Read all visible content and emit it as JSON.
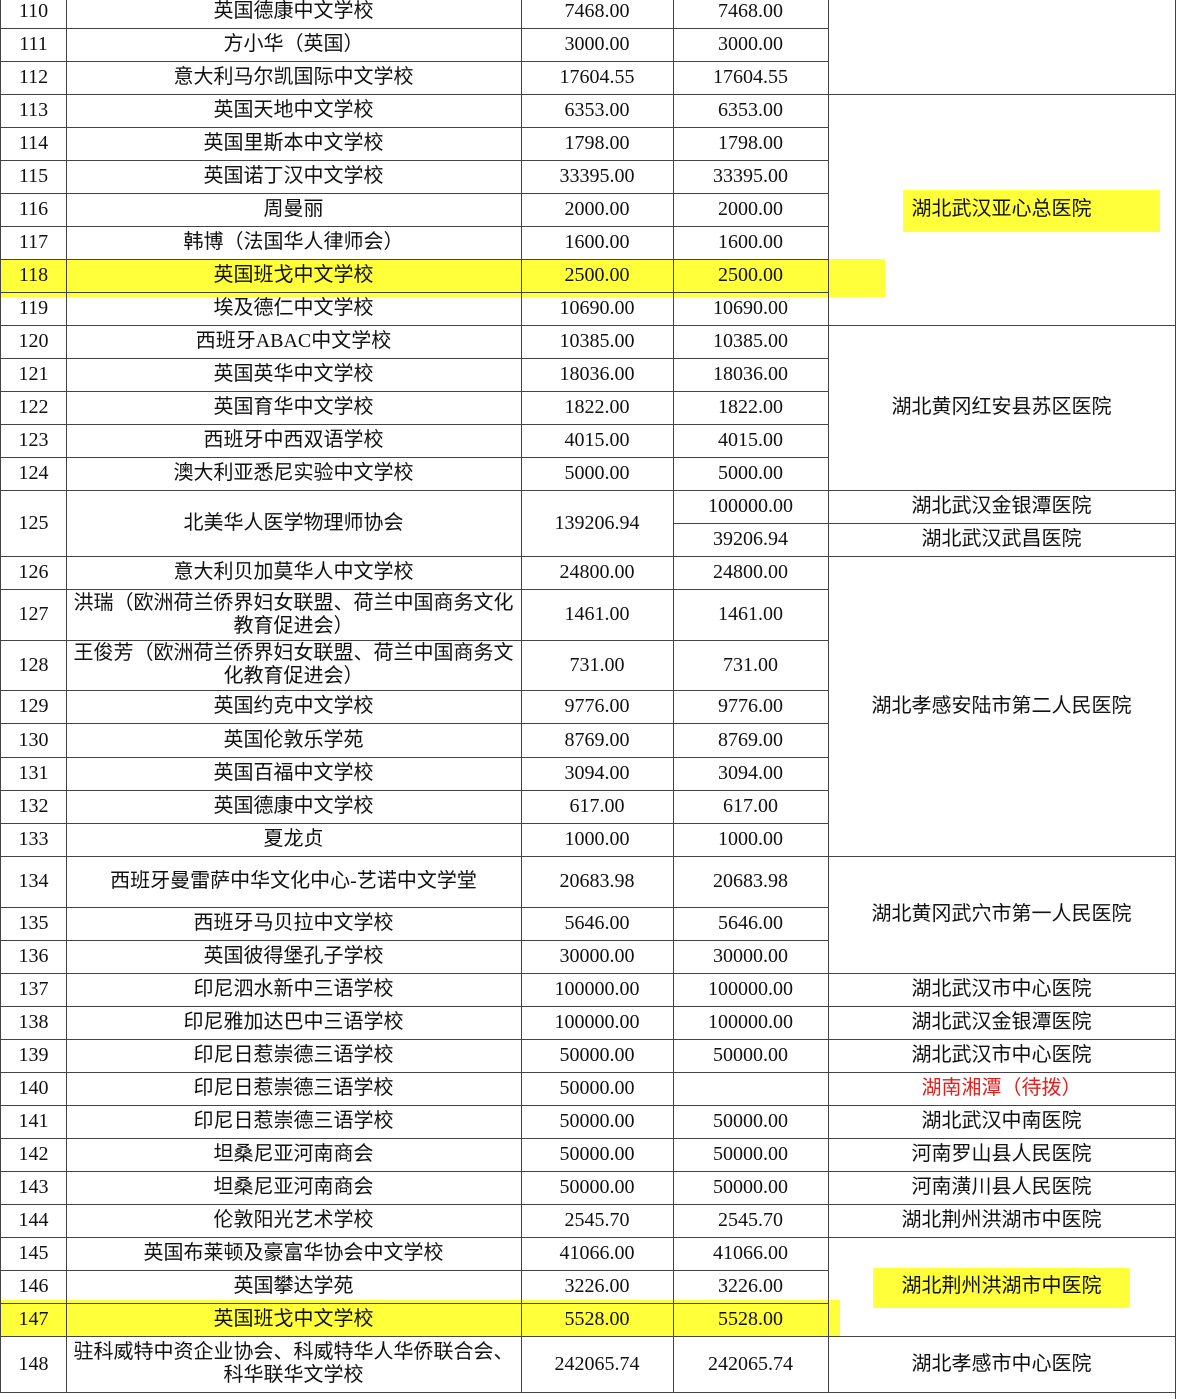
{
  "table": {
    "rows": [
      {
        "no": 110,
        "name": "英国德康中文学校",
        "amount": "7468.00",
        "allocated": "7468.00"
      },
      {
        "no": 111,
        "name": "方小华（英国）",
        "amount": "3000.00",
        "allocated": "3000.00"
      },
      {
        "no": 112,
        "name": "意大利马尔凯国际中文学校",
        "amount": "17604.55",
        "allocated": "17604.55"
      },
      {
        "no": 113,
        "name": "英国天地中文学校",
        "amount": "6353.00",
        "allocated": "6353.00"
      },
      {
        "no": 114,
        "name": "英国里斯本中文学校",
        "amount": "1798.00",
        "allocated": "1798.00"
      },
      {
        "no": 115,
        "name": "英国诺丁汉中文学校",
        "amount": "33395.00",
        "allocated": "33395.00"
      },
      {
        "no": 116,
        "name": "周曼丽",
        "amount": "2000.00",
        "allocated": "2000.00"
      },
      {
        "no": 117,
        "name": "韩博（法国华人律师会）",
        "amount": "1600.00",
        "allocated": "1600.00"
      },
      {
        "no": 118,
        "name": "英国班戈中文学校",
        "amount": "2500.00",
        "allocated": "2500.00"
      },
      {
        "no": 119,
        "name": "埃及德仁中文学校",
        "amount": "10690.00",
        "allocated": "10690.00"
      },
      {
        "no": 120,
        "name": "西班牙ABAC中文学校",
        "amount": "10385.00",
        "allocated": "10385.00"
      },
      {
        "no": 121,
        "name": "英国英华中文学校",
        "amount": "18036.00",
        "allocated": "18036.00"
      },
      {
        "no": 122,
        "name": "英国育华中文学校",
        "amount": "1822.00",
        "allocated": "1822.00"
      },
      {
        "no": 123,
        "name": "西班牙中西双语学校",
        "amount": "4015.00",
        "allocated": "4015.00"
      },
      {
        "no": 124,
        "name": "澳大利亚悉尼实验中文学校",
        "amount": "5000.00",
        "allocated": "5000.00"
      },
      {
        "no": 125,
        "name": "北美华人医学物理师协会",
        "amount": "139206.94",
        "allocated": [
          "100000.00",
          "39206.94"
        ]
      },
      {
        "no": 126,
        "name": "意大利贝加莫华人中文学校",
        "amount": "24800.00",
        "allocated": "24800.00"
      },
      {
        "no": 127,
        "name": "洪瑞（欧洲荷兰侨界妇女联盟、荷兰中国商务文化教育促进会）",
        "amount": "1461.00",
        "allocated": "1461.00"
      },
      {
        "no": 128,
        "name": "王俊芳（欧洲荷兰侨界妇女联盟、荷兰中国商务文化教育促进会）",
        "amount": "731.00",
        "allocated": "731.00"
      },
      {
        "no": 129,
        "name": "英国约克中文学校",
        "amount": "9776.00",
        "allocated": "9776.00"
      },
      {
        "no": 130,
        "name": "英国伦敦乐学苑",
        "amount": "8769.00",
        "allocated": "8769.00"
      },
      {
        "no": 131,
        "name": "英国百福中文学校",
        "amount": "3094.00",
        "allocated": "3094.00"
      },
      {
        "no": 132,
        "name": "英国德康中文学校",
        "amount": "617.00",
        "allocated": "617.00"
      },
      {
        "no": 133,
        "name": "夏龙贞",
        "amount": "1000.00",
        "allocated": "1000.00"
      },
      {
        "no": 134,
        "name": "西班牙曼雷萨中华文化中心-艺诺中文学堂",
        "amount": "20683.98",
        "allocated": "20683.98"
      },
      {
        "no": 135,
        "name": "西班牙马贝拉中文学校",
        "amount": "5646.00",
        "allocated": "5646.00"
      },
      {
        "no": 136,
        "name": "英国彼得堡孔子学校",
        "amount": "30000.00",
        "allocated": "30000.00"
      },
      {
        "no": 137,
        "name": "印尼泗水新中三语学校",
        "amount": "100000.00",
        "allocated": "100000.00"
      },
      {
        "no": 138,
        "name": "印尼雅加达巴中三语学校",
        "amount": "100000.00",
        "allocated": "100000.00"
      },
      {
        "no": 139,
        "name": "印尼日惹崇德三语学校",
        "amount": "50000.00",
        "allocated": "50000.00"
      },
      {
        "no": 140,
        "name": "印尼日惹崇德三语学校",
        "amount": "50000.00"
      },
      {
        "no": 141,
        "name": "印尼日惹崇德三语学校",
        "amount": "50000.00",
        "allocated": "50000.00"
      },
      {
        "no": 142,
        "name": "坦桑尼亚河南商会",
        "amount": "50000.00",
        "allocated": "50000.00"
      },
      {
        "no": 143,
        "name": "坦桑尼亚河南商会",
        "amount": "50000.00",
        "allocated": "50000.00"
      },
      {
        "no": 144,
        "name": "伦敦阳光艺术学校",
        "amount": "2545.70",
        "allocated": "2545.70"
      },
      {
        "no": 145,
        "name": "英国布莱顿及豪富华协会中文学校",
        "amount": "41066.00",
        "allocated": "41066.00"
      },
      {
        "no": 146,
        "name": "英国攀达学苑",
        "amount": "3226.00",
        "allocated": "3226.00"
      },
      {
        "no": 147,
        "name": "英国班戈中文学校",
        "amount": "5528.00",
        "allocated": "5528.00"
      },
      {
        "no": 148,
        "name": "驻科威特中资企业协会、科威特华人华侨联合会、科华联华文学校",
        "amount": "242065.74",
        "allocated": "242065.74"
      }
    ],
    "hospitals": [
      "湖北武汉亚心总医院",
      "湖北黄冈红安县苏区医院",
      "湖北武汉金银潭医院",
      "湖北武汉武昌医院",
      "湖北孝感安陆市第二人民医院",
      "湖北黄冈武穴市第一人民医院",
      "湖北武汉市中心医院",
      "湖北武汉金银潭医院",
      "湖北武汉市中心医院",
      "湖南湘潭（待拨）",
      "湖北武汉中南医院",
      "河南罗山县人民医院",
      "河南潢川县人民医院",
      "湖北荆州洪湖市中医院",
      "湖北荆州洪湖市中医院",
      "湖北孝感市中心医院"
    ]
  }
}
